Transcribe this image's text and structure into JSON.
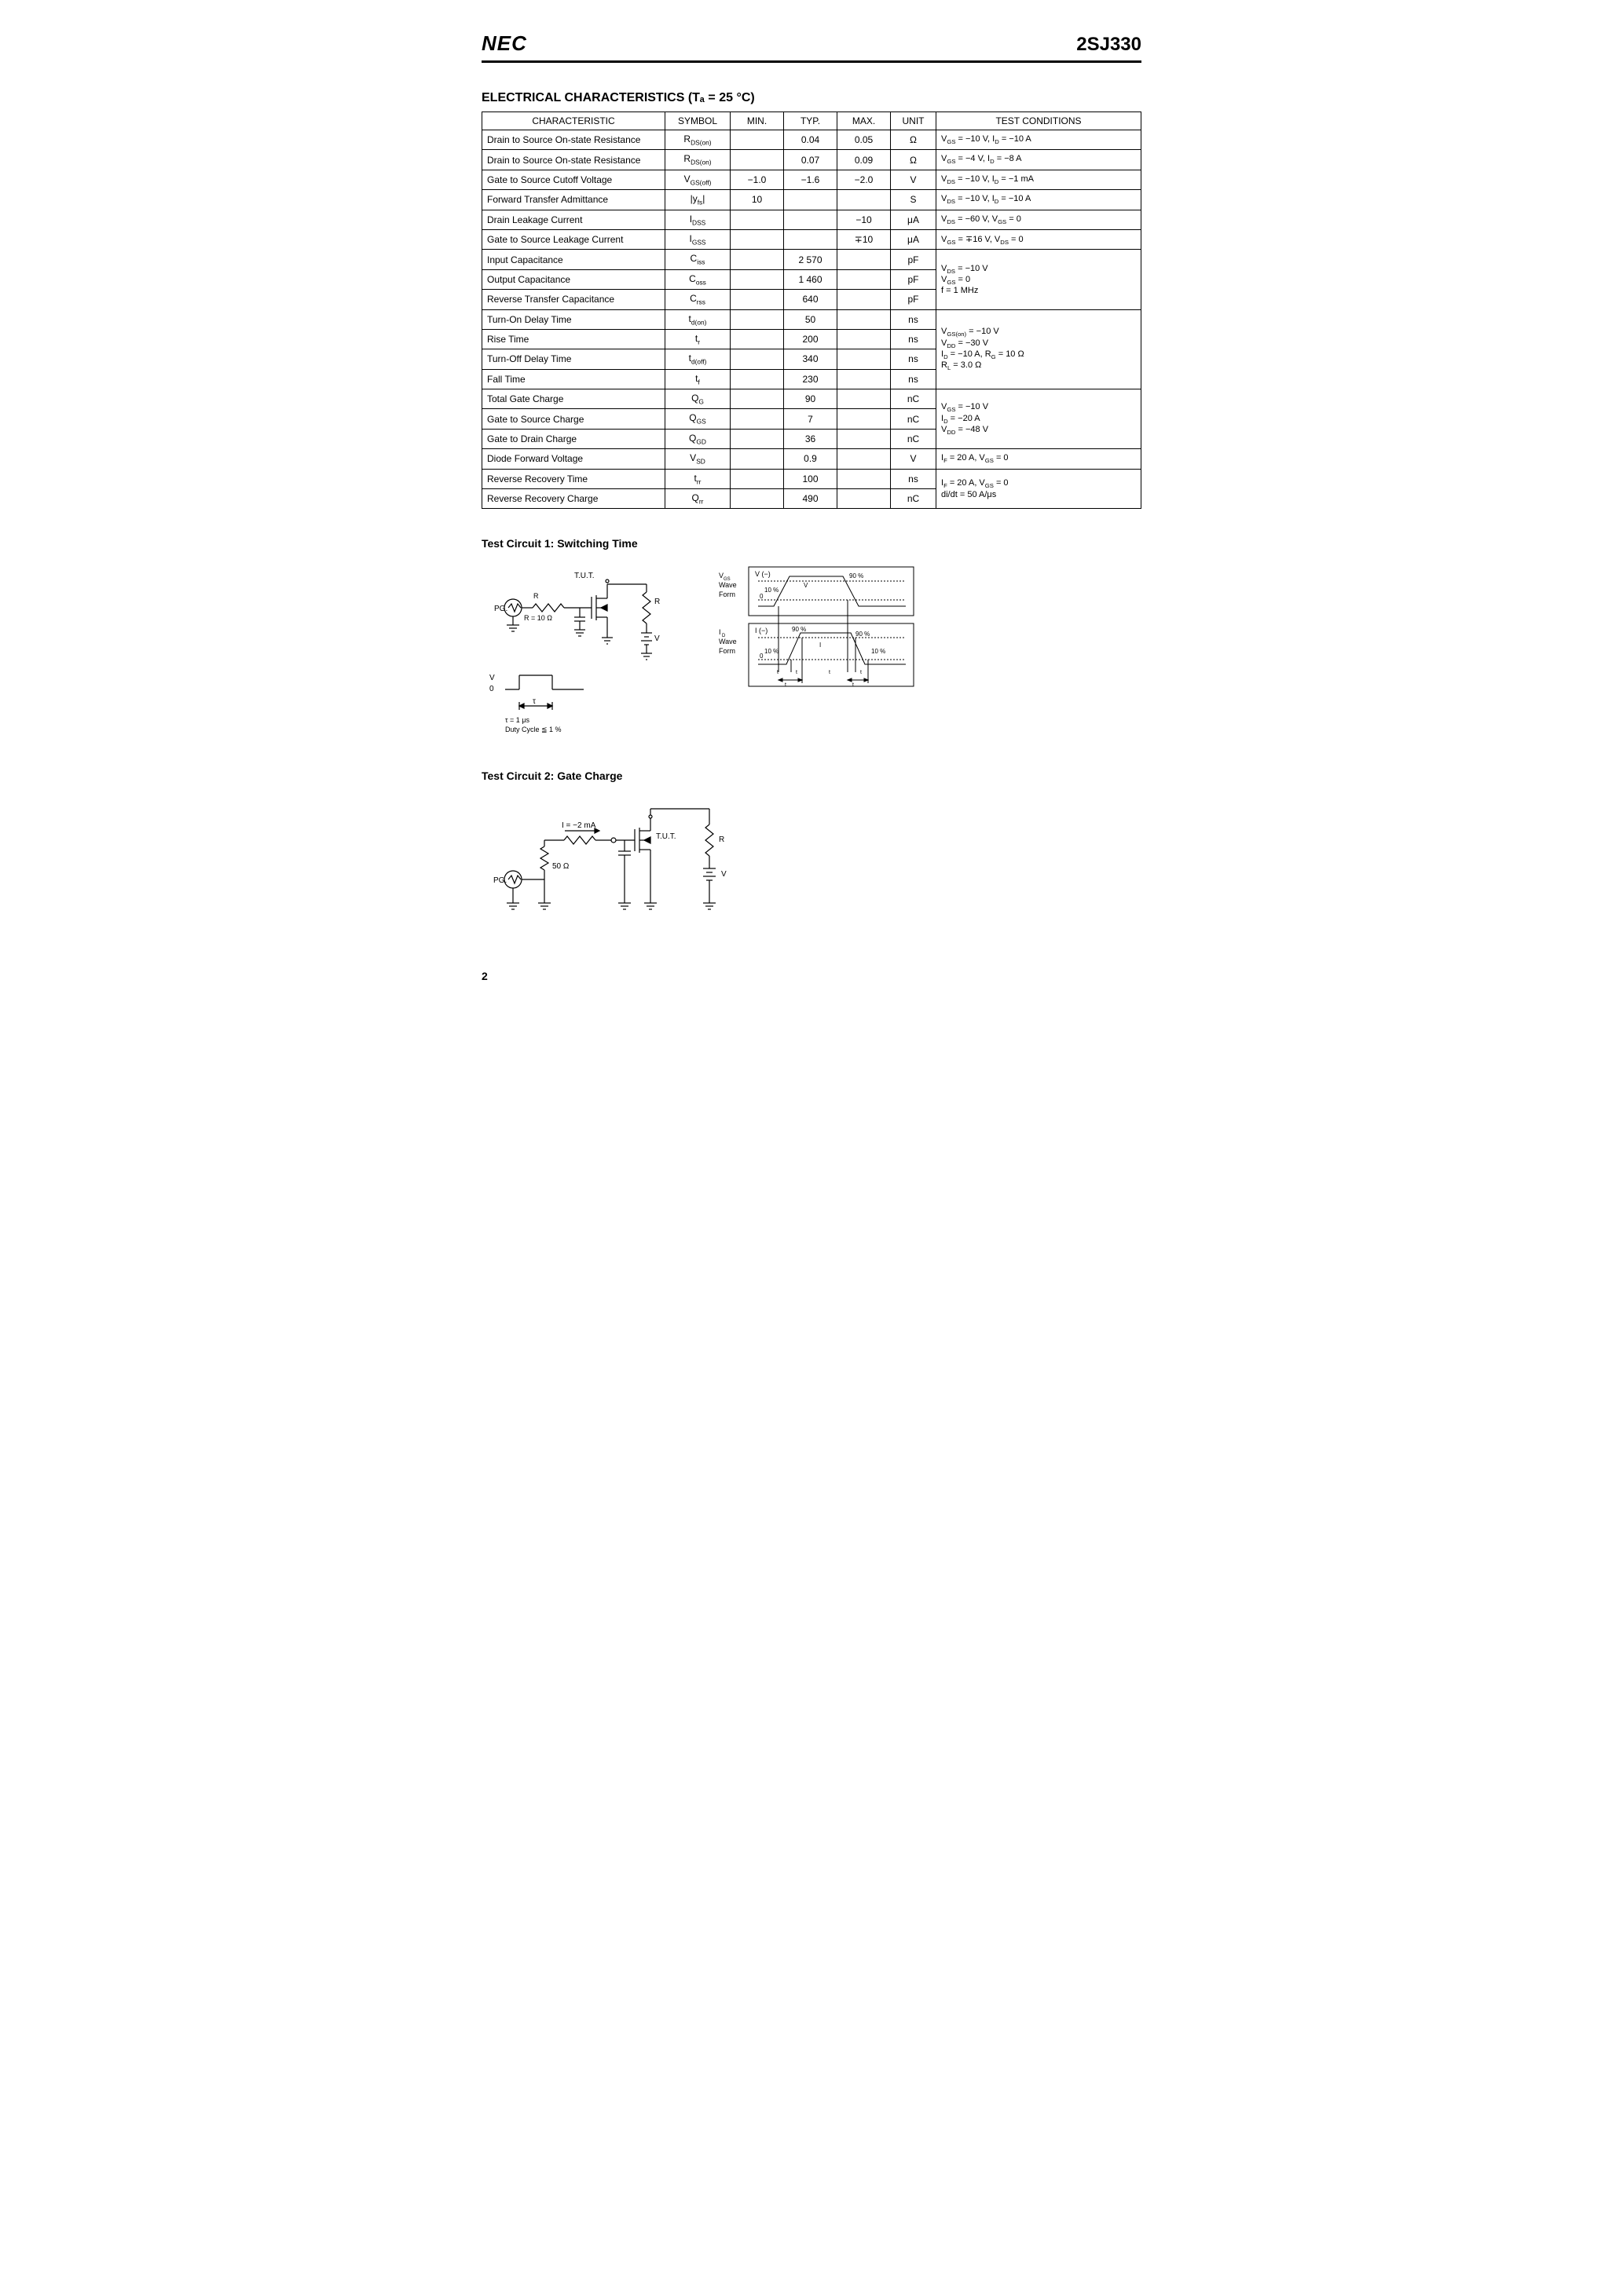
{
  "header": {
    "logo": "NEC",
    "part_number": "2SJ330"
  },
  "section": {
    "title": "ELECTRICAL CHARACTERISTICS (Tₐ = 25 °C)"
  },
  "table": {
    "headers": {
      "characteristic": "CHARACTERISTIC",
      "symbol": "SYMBOL",
      "min": "MIN.",
      "typ": "TYP.",
      "max": "MAX.",
      "unit": "UNIT",
      "test_conditions": "TEST CONDITIONS"
    },
    "rows": [
      {
        "char": "Drain to Source On-state Resistance",
        "sym": "R<sub>DS(on)</sub>",
        "min": "",
        "typ": "0.04",
        "max": "0.05",
        "unit": "Ω",
        "cond": "V<sub>GS</sub> = −10 V, I<sub>D</sub> = −10 A"
      },
      {
        "char": "Drain to Source On-state Resistance",
        "sym": "R<sub>DS(on)</sub>",
        "min": "",
        "typ": "0.07",
        "max": "0.09",
        "unit": "Ω",
        "cond": "V<sub>GS</sub> = −4 V, I<sub>D</sub> = −8 A"
      },
      {
        "char": "Gate to Source Cutoff Voltage",
        "sym": "V<sub>GS(off)</sub>",
        "min": "−1.0",
        "typ": "−1.6",
        "max": "−2.0",
        "unit": "V",
        "cond": "V<sub>DS</sub> = −10 V, I<sub>D</sub> = −1 mA"
      },
      {
        "char": "Forward Transfer Admittance",
        "sym": "|y<sub>fs</sub>|",
        "min": "10",
        "typ": "",
        "max": "",
        "unit": "S",
        "cond": "V<sub>DS</sub> = −10 V, I<sub>D</sub> = −10 A"
      },
      {
        "char": "Drain Leakage Current",
        "sym": "I<sub>DSS</sub>",
        "min": "",
        "typ": "",
        "max": "−10",
        "unit": "μA",
        "cond": "V<sub>DS</sub> = −60 V, V<sub>GS</sub> = 0"
      },
      {
        "char": "Gate to Source Leakage Current",
        "sym": "I<sub>GSS</sub>",
        "min": "",
        "typ": "",
        "max": "∓10",
        "unit": "μA",
        "cond": "V<sub>GS</sub> = ∓16 V, V<sub>DS</sub> = 0"
      },
      {
        "char": "Input Capacitance",
        "sym": "C<sub>iss</sub>",
        "min": "",
        "typ": "2 570",
        "max": "",
        "unit": "pF",
        "cond": "V<sub>DS</sub> = −10 V",
        "rowspan_cond": 3
      },
      {
        "char": "Output Capacitance",
        "sym": "C<sub>oss</sub>",
        "min": "",
        "typ": "1 460",
        "max": "",
        "unit": "pF",
        "cond": "V<sub>GS</sub> = 0"
      },
      {
        "char": "Reverse Transfer Capacitance",
        "sym": "C<sub>rss</sub>",
        "min": "",
        "typ": "640",
        "max": "",
        "unit": "pF",
        "cond": "f = 1 MHz"
      },
      {
        "char": "Turn-On Delay Time",
        "sym": "t<sub>d(on)</sub>",
        "min": "",
        "typ": "50",
        "max": "",
        "unit": "ns",
        "cond": "V<sub>GS(on)</sub> = −10 V",
        "rowspan_cond": 4
      },
      {
        "char": "Rise Time",
        "sym": "t<sub>r</sub>",
        "min": "",
        "typ": "200",
        "max": "",
        "unit": "ns",
        "cond": "V<sub>DD</sub> = −30 V"
      },
      {
        "char": "Turn-Off Delay Time",
        "sym": "t<sub>d(off)</sub>",
        "min": "",
        "typ": "340",
        "max": "",
        "unit": "ns",
        "cond": "I<sub>D</sub> = −10 A, R<sub>G</sub> = 10 Ω"
      },
      {
        "char": "Fall Time",
        "sym": "t<sub>f</sub>",
        "min": "",
        "typ": "230",
        "max": "",
        "unit": "ns",
        "cond": "R<sub>L</sub> = 3.0 Ω"
      },
      {
        "char": "Total Gate Charge",
        "sym": "Q<sub>G</sub>",
        "min": "",
        "typ": "90",
        "max": "",
        "unit": "nC",
        "cond": "V<sub>GS</sub> = −10 V",
        "rowspan_cond": 3
      },
      {
        "char": "Gate to Source Charge",
        "sym": "Q<sub>GS</sub>",
        "min": "",
        "typ": "7",
        "max": "",
        "unit": "nC",
        "cond": "I<sub>D</sub> = −20 A"
      },
      {
        "char": "Gate to Drain Charge",
        "sym": "Q<sub>GD</sub>",
        "min": "",
        "typ": "36",
        "max": "",
        "unit": "nC",
        "cond": "V<sub>DD</sub> = −48 V"
      },
      {
        "char": "Diode Forward Voltage",
        "sym": "V<sub>SD</sub>",
        "min": "",
        "typ": "0.9",
        "max": "",
        "unit": "V",
        "cond": "I<sub>F</sub> = 20 A, V<sub>GS</sub> = 0"
      },
      {
        "char": "Reverse Recovery Time",
        "sym": "t<sub>rr</sub>",
        "min": "",
        "typ": "100",
        "max": "",
        "unit": "ns",
        "cond": "I<sub>F</sub> = 20 A, V<sub>GS</sub> = 0",
        "rowspan_cond": 2
      },
      {
        "char": "Reverse Recovery Charge",
        "sym": "Q<sub>rr</sub>",
        "min": "",
        "typ": "490",
        "max": "",
        "unit": "nC",
        "cond": "di/dt = 50 A/μs"
      }
    ],
    "cond_groups": [
      {
        "start": 6,
        "lines": [
          "V<sub>DS</sub> = −10 V",
          "V<sub>GS</sub> = 0",
          "f = 1 MHz"
        ],
        "span": 3
      },
      {
        "start": 9,
        "lines": [
          "V<sub>GS(on)</sub> = −10 V",
          "V<sub>DD</sub> = −30 V",
          "I<sub>D</sub> = −10 A, R<sub>G</sub> = 10 Ω",
          "R<sub>L</sub> = 3.0 Ω"
        ],
        "span": 4
      },
      {
        "start": 13,
        "lines": [
          "V<sub>GS</sub> = −10 V",
          "I<sub>D</sub> = −20 A",
          "V<sub>DD</sub> = −48 V"
        ],
        "span": 3
      },
      {
        "start": 17,
        "lines": [
          "I<sub>F</sub> = 20 A, V<sub>GS</sub> = 0",
          "di/dt = 50 A/μs"
        ],
        "span": 2
      }
    ]
  },
  "test_circuit_1": {
    "title": "Test Circuit 1: Switching Time",
    "labels": {
      "tut": "T.U.T.",
      "rl": "R<sub>L</sub>",
      "vdd": "V<sub>DD</sub>",
      "rg": "R<sub>G</sub>",
      "rg_val": "R<sub>G</sub> = 10 Ω",
      "pg": "PG.",
      "vgs": "V<sub>GS</sub>",
      "zero": "0",
      "tau": "τ",
      "tau_note": "τ = 1 μs\nDuty Cycle ≦ 1 %",
      "vgs_wave": "V<sub>GS</sub>\nWave\nForm",
      "id_wave": "I<sub>D</sub>\nWave\nForm",
      "vgs_minus": "V<sub>GS</sub> (−)",
      "id_minus": "I<sub>D</sub> (−)",
      "vgs_on": "V<sub>GS(on)</sub>",
      "id": "I<sub>D</sub>",
      "p90": "90 %",
      "p10": "10 %",
      "tdon": "t<sub>d (on)</sub>",
      "tr": "t<sub>r</sub>",
      "tdoff": "t<sub>d (off)</sub>",
      "tf": "t<sub>f</sub>",
      "ton": "t<sub>on</sub>",
      "toff": "t<sub>off</sub>"
    }
  },
  "test_circuit_2": {
    "title": "Test Circuit 2: Gate Charge",
    "labels": {
      "ig": "I<sub>G</sub> = −2 mA",
      "tut": "T.U.T.",
      "rl": "R<sub>L</sub>",
      "vdd": "V<sub>DD</sub>",
      "pg": "PG.",
      "r50": "50 Ω"
    }
  },
  "page_number": "2"
}
